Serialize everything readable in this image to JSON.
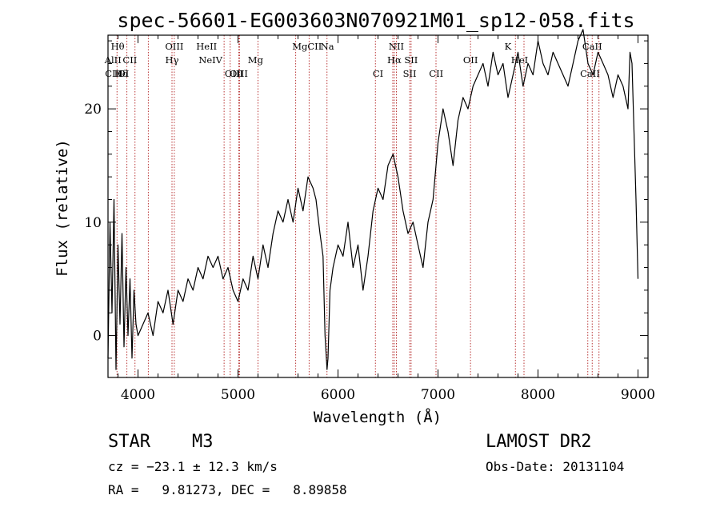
{
  "chart_data": {
    "type": "line",
    "title": "spec-56601-EG003603N070921M01_sp12-058.fits",
    "xlabel": "Wavelength (Å)",
    "ylabel": "Flux (relative)",
    "xlim": [
      3700,
      9100
    ],
    "ylim": [
      -3.7,
      26.5
    ],
    "xticks": [
      "4000",
      "5000",
      "6000",
      "7000",
      "8000",
      "9000"
    ],
    "yticks": [
      "0",
      "10",
      "20"
    ],
    "grid": false,
    "line_color": "#000000",
    "marker_color": "#b22222",
    "series": [
      {
        "x": [
          3700,
          3720,
          3740,
          3760,
          3780,
          3800,
          3820,
          3840,
          3860,
          3880,
          3900,
          3920,
          3940,
          3960,
          3980,
          4000,
          4050,
          4100,
          4150,
          4200,
          4250,
          4300,
          4350,
          4400,
          4450,
          4500,
          4550,
          4600,
          4650,
          4700,
          4750,
          4800,
          4850,
          4900,
          4950,
          5000,
          5050,
          5100,
          5150,
          5200,
          5250,
          5300,
          5350,
          5400,
          5450,
          5500,
          5550,
          5600,
          5650,
          5700,
          5750,
          5780,
          5820,
          5850,
          5870,
          5890,
          5900,
          5920,
          5950,
          6000,
          6050,
          6100,
          6150,
          6200,
          6250,
          6300,
          6350,
          6400,
          6450,
          6500,
          6550,
          6600,
          6650,
          6700,
          6750,
          6800,
          6850,
          6900,
          6950,
          7000,
          7050,
          7100,
          7150,
          7200,
          7250,
          7300,
          7350,
          7400,
          7450,
          7500,
          7550,
          7600,
          7650,
          7700,
          7750,
          7800,
          7850,
          7900,
          7950,
          8000,
          8050,
          8100,
          8150,
          8200,
          8250,
          8300,
          8350,
          8400,
          8450,
          8500,
          8550,
          8600,
          8650,
          8700,
          8750,
          8800,
          8850,
          8900,
          8920,
          8940,
          8960,
          8980,
          9000
        ],
        "y": [
          -2,
          10,
          2,
          12,
          -3,
          8,
          1,
          9,
          -1,
          6,
          0,
          5,
          -2,
          4,
          1,
          0,
          1,
          2,
          0,
          3,
          2,
          4,
          1,
          4,
          3,
          5,
          4,
          6,
          5,
          7,
          6,
          7,
          5,
          6,
          4,
          3,
          5,
          4,
          7,
          5,
          8,
          6,
          9,
          11,
          10,
          12,
          10,
          13,
          11,
          14,
          13,
          12,
          9,
          7,
          0,
          -3,
          -2,
          4,
          6,
          8,
          7,
          10,
          6,
          8,
          4,
          7,
          11,
          13,
          12,
          15,
          16,
          14,
          11,
          9,
          10,
          8,
          6,
          10,
          12,
          17,
          20,
          18,
          15,
          19,
          21,
          20,
          22,
          23,
          24,
          22,
          25,
          23,
          24,
          21,
          23,
          25,
          22,
          24,
          23,
          26,
          24,
          23,
          25,
          24,
          23,
          22,
          24,
          26,
          27,
          24,
          23,
          25,
          24,
          23,
          21,
          23,
          22,
          20,
          25,
          24,
          18,
          12,
          5
        ]
      }
    ],
    "line_markers": [
      {
        "label": "Hθ",
        "x": 3797,
        "row": 1
      },
      {
        "label": "AlII",
        "x": 3750,
        "row": 2
      },
      {
        "label": "CII",
        "x": 3919,
        "row": 2
      },
      {
        "label": "OIII",
        "x": 4363,
        "row": 1
      },
      {
        "label": "Hγ",
        "x": 4340,
        "row": 2
      },
      {
        "label": "HeII",
        "x": 4686,
        "row": 1
      },
      {
        "label": "NeIV",
        "x": 4725,
        "row": 2
      },
      {
        "label": "Mg",
        "x": 5175,
        "row": 2
      },
      {
        "label": "MgCII",
        "x": 5690,
        "row": 1
      },
      {
        "label": "Na",
        "x": 5893,
        "row": 1
      },
      {
        "label": "NII",
        "x": 6584,
        "row": 1
      },
      {
        "label": "Hα",
        "x": 6563,
        "row": 2
      },
      {
        "label": "SII",
        "x": 6731,
        "row": 2
      },
      {
        "label": "OII",
        "x": 7325,
        "row": 2
      },
      {
        "label": "K",
        "x": 7699,
        "row": 1
      },
      {
        "label": "HeI",
        "x": 7816,
        "row": 2
      },
      {
        "label": "CaII",
        "x": 8542,
        "row": 1
      },
      {
        "label": "CIII",
        "x": 3760,
        "row": 3
      },
      {
        "label": "Hδ",
        "x": 3830,
        "row": 3
      },
      {
        "label": "OI",
        "x": 3855,
        "row": 3
      },
      {
        "label": "OIII",
        "x": 5007,
        "row": 3
      },
      {
        "label": "OIII",
        "x": 4959,
        "row": 3
      },
      {
        "label": "CI",
        "x": 6400,
        "row": 3
      },
      {
        "label": "SII",
        "x": 6717,
        "row": 3
      },
      {
        "label": "CII",
        "x": 6982,
        "row": 3
      },
      {
        "label": "CaII",
        "x": 8520,
        "row": 3
      }
    ],
    "line_positions": [
      3790,
      3889,
      3970,
      4103,
      4340,
      4363,
      4861,
      4922,
      5007,
      5015,
      5200,
      5577,
      5711,
      5890,
      6374,
      6548,
      6563,
      6584,
      6717,
      6731,
      6980,
      7325,
      7774,
      7860,
      8498,
      8542,
      8610
    ]
  },
  "info": {
    "class": "STAR",
    "subclass": "M3",
    "cz": "cz = −23.1 ± 12.3 km/s",
    "radec": "RA =   9.81273, DEC =   8.89858",
    "survey": "LAMOST DR2",
    "obsdate": "Obs-Date: 20131104"
  }
}
